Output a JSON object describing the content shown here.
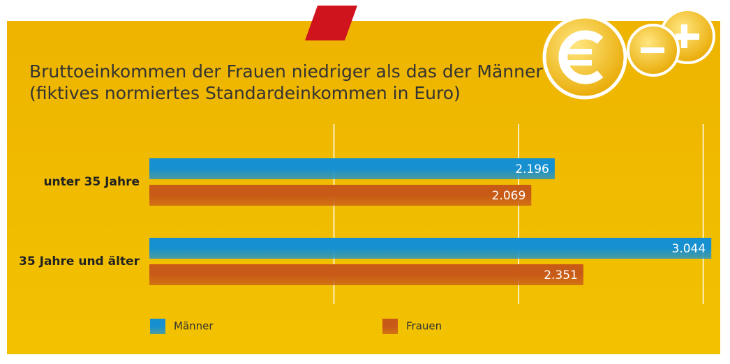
{
  "chart_data": {
    "type": "hbar",
    "title": "Bruttoeinkommen der Frauen niedriger als das der Männer",
    "subtitle": "(fiktives normiertes Standardeinkommen in Euro)",
    "categories": [
      "unter 35 Jahre",
      "35 Jahre und älter"
    ],
    "series": [
      {
        "name": "Männer",
        "color": "#1690d0",
        "values": [
          2196,
          3044
        ],
        "value_labels": [
          "2.196",
          "3.044"
        ]
      },
      {
        "name": "Frauen",
        "color": "#c85a18",
        "values": [
          2069,
          2351
        ],
        "value_labels": [
          "2.069",
          "2.351"
        ]
      }
    ],
    "xlim": [
      0,
      3100
    ],
    "xticks": [
      1000,
      2000,
      3000
    ],
    "grid": true
  }
}
